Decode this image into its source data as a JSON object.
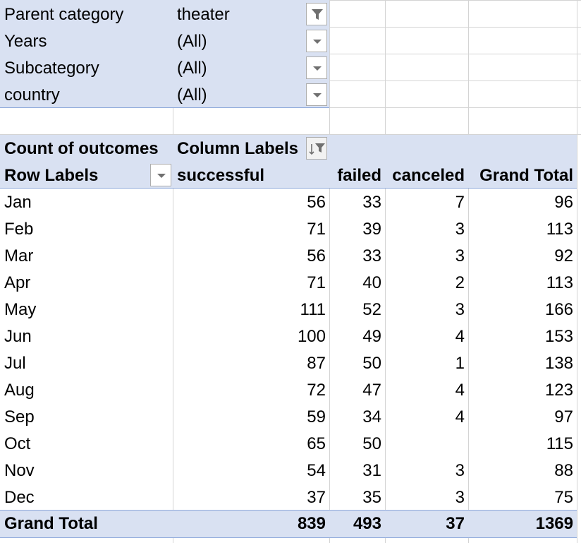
{
  "filters": [
    {
      "label": "Parent category",
      "value": "theater",
      "filtered": true
    },
    {
      "label": "Years",
      "value": "(All)",
      "filtered": false
    },
    {
      "label": "Subcategory",
      "value": "(All)",
      "filtered": false
    },
    {
      "label": "country",
      "value": "(All)",
      "filtered": false
    }
  ],
  "pivot": {
    "value_field": "Count of outcomes",
    "column_labels": "Column Labels",
    "row_labels": "Row Labels",
    "columns": [
      "successful",
      "failed",
      "canceled",
      "Grand Total"
    ],
    "rows": [
      {
        "label": "Jan",
        "successful": "56",
        "failed": "33",
        "canceled": "7",
        "total": "96"
      },
      {
        "label": "Feb",
        "successful": "71",
        "failed": "39",
        "canceled": "3",
        "total": "113"
      },
      {
        "label": "Mar",
        "successful": "56",
        "failed": "33",
        "canceled": "3",
        "total": "92"
      },
      {
        "label": "Apr",
        "successful": "71",
        "failed": "40",
        "canceled": "2",
        "total": "113"
      },
      {
        "label": "May",
        "successful": "111",
        "failed": "52",
        "canceled": "3",
        "total": "166"
      },
      {
        "label": "Jun",
        "successful": "100",
        "failed": "49",
        "canceled": "4",
        "total": "153"
      },
      {
        "label": "Jul",
        "successful": "87",
        "failed": "50",
        "canceled": "1",
        "total": "138"
      },
      {
        "label": "Aug",
        "successful": "72",
        "failed": "47",
        "canceled": "4",
        "total": "123"
      },
      {
        "label": "Sep",
        "successful": "59",
        "failed": "34",
        "canceled": "4",
        "total": "97"
      },
      {
        "label": "Oct",
        "successful": "65",
        "failed": "50",
        "canceled": "",
        "total": "115"
      },
      {
        "label": "Nov",
        "successful": "54",
        "failed": "31",
        "canceled": "3",
        "total": "88"
      },
      {
        "label": "Dec",
        "successful": "37",
        "failed": "35",
        "canceled": "3",
        "total": "75"
      }
    ],
    "grand_total": {
      "label": "Grand Total",
      "successful": "839",
      "failed": "493",
      "canceled": "37",
      "total": "1369"
    }
  },
  "icons": {
    "filter_active": "filter-funnel-icon",
    "dropdown": "chevron-down-icon",
    "sort_filter": "sort-filter-icon"
  },
  "colors": {
    "header_band": "#d9e1f2",
    "band_border": "#8ea9db",
    "gridline": "#d4d4d4"
  }
}
